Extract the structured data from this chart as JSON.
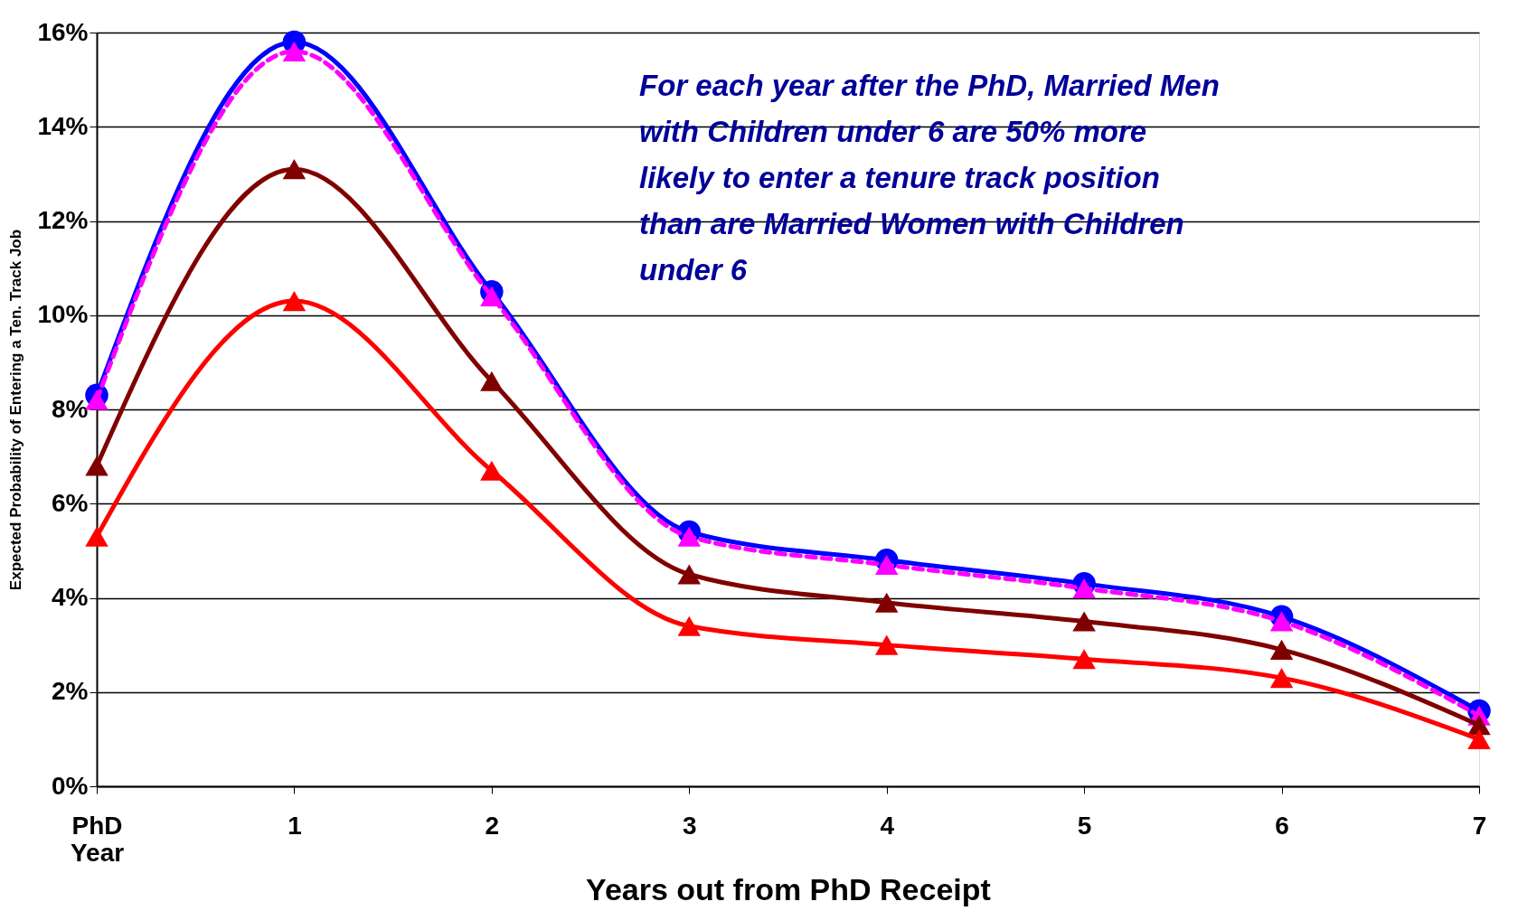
{
  "chart_data": {
    "type": "line",
    "xlabel": "Years out from PhD Receipt",
    "ylabel": "Expected Probability of Entering a Ten. Track Job",
    "categories": [
      "PhD Year",
      "1",
      "2",
      "3",
      "4",
      "5",
      "6",
      "7"
    ],
    "series": [
      {
        "color": "#0000ff",
        "marker": "circle",
        "line_style": "solid",
        "values": [
          8.3,
          15.8,
          10.5,
          5.4,
          4.8,
          4.3,
          3.6,
          1.6
        ]
      },
      {
        "color": "#ff00ff",
        "marker": "triangle",
        "line_style": "dashed",
        "values": [
          8.2,
          15.6,
          10.4,
          5.3,
          4.7,
          4.2,
          3.5,
          1.5
        ]
      },
      {
        "color": "#800000",
        "marker": "triangle",
        "line_style": "solid",
        "values": [
          6.8,
          13.1,
          8.6,
          4.5,
          3.9,
          3.5,
          2.9,
          1.3
        ]
      },
      {
        "color": "#ff0000",
        "marker": "triangle",
        "line_style": "solid",
        "values": [
          5.3,
          10.3,
          6.7,
          3.4,
          3.0,
          2.7,
          2.3,
          1.0
        ]
      }
    ],
    "ylim": [
      0,
      16
    ],
    "yticks": [
      {
        "value": 0,
        "label": "0%"
      },
      {
        "value": 2,
        "label": "2%"
      },
      {
        "value": 4,
        "label": "4%"
      },
      {
        "value": 6,
        "label": "6%"
      },
      {
        "value": 8,
        "label": "8%"
      },
      {
        "value": 10,
        "label": "10%"
      },
      {
        "value": 12,
        "label": "12%"
      },
      {
        "value": 14,
        "label": "14%"
      },
      {
        "value": 16,
        "label": "16%"
      }
    ],
    "grid": "y",
    "legend": false,
    "annotations": [
      "For each year after the PhD, Married Men\nwith Children under 6 are 50% more\nlikely to enter a tenure track position\nthan are Married Women with Children\nunder 6"
    ]
  }
}
